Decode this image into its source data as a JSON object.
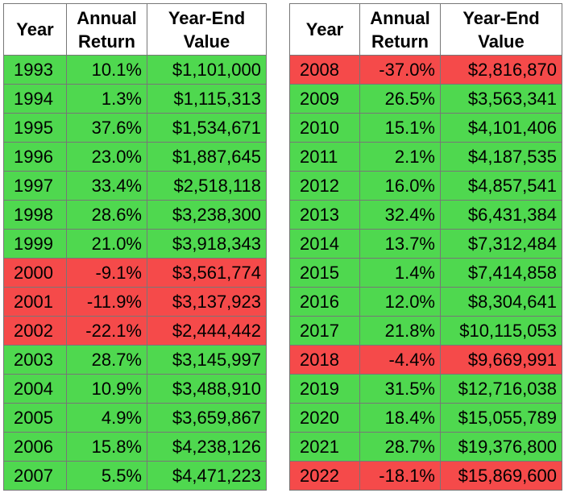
{
  "tables": [
    {
      "headers": [
        "Year",
        "Annual Return",
        "Year-End Value"
      ],
      "rows": [
        [
          "1993",
          "10.1%",
          "$1,101,000"
        ],
        [
          "1994",
          "1.3%",
          "$1,115,313"
        ],
        [
          "1995",
          "37.6%",
          "$1,534,671"
        ],
        [
          "1996",
          "23.0%",
          "$1,887,645"
        ],
        [
          "1997",
          "33.4%",
          "$2,518,118"
        ],
        [
          "1998",
          "28.6%",
          "$3,238,300"
        ],
        [
          "1999",
          "21.0%",
          "$3,918,343"
        ],
        [
          "2000",
          "-9.1%",
          "$3,561,774"
        ],
        [
          "2001",
          "-11.9%",
          "$3,137,923"
        ],
        [
          "2002",
          "-22.1%",
          "$2,444,442"
        ],
        [
          "2003",
          "28.7%",
          "$3,145,997"
        ],
        [
          "2004",
          "10.9%",
          "$3,488,910"
        ],
        [
          "2005",
          "4.9%",
          "$3,659,867"
        ],
        [
          "2006",
          "15.8%",
          "$4,238,126"
        ],
        [
          "2007",
          "5.5%",
          "$4,471,223"
        ]
      ]
    },
    {
      "headers": [
        "Year",
        "Annual Return",
        "Year-End Value"
      ],
      "rows": [
        [
          "2008",
          "-37.0%",
          "$2,816,870"
        ],
        [
          "2009",
          "26.5%",
          "$3,563,341"
        ],
        [
          "2010",
          "15.1%",
          "$4,101,406"
        ],
        [
          "2011",
          "2.1%",
          "$4,187,535"
        ],
        [
          "2012",
          "16.0%",
          "$4,857,541"
        ],
        [
          "2013",
          "32.4%",
          "$6,431,384"
        ],
        [
          "2014",
          "13.7%",
          "$7,312,484"
        ],
        [
          "2015",
          "1.4%",
          "$7,414,858"
        ],
        [
          "2016",
          "12.0%",
          "$8,304,641"
        ],
        [
          "2017",
          "21.8%",
          "$10,115,053"
        ],
        [
          "2018",
          "-4.4%",
          "$9,669,991"
        ],
        [
          "2019",
          "31.5%",
          "$12,716,038"
        ],
        [
          "2020",
          "18.4%",
          "$15,055,789"
        ],
        [
          "2021",
          "28.7%",
          "$19,376,800"
        ],
        [
          "2022",
          "-18.1%",
          "$15,869,600"
        ]
      ]
    }
  ],
  "positive_color": "#4fd84f",
  "negative_color": "#f54a4a"
}
